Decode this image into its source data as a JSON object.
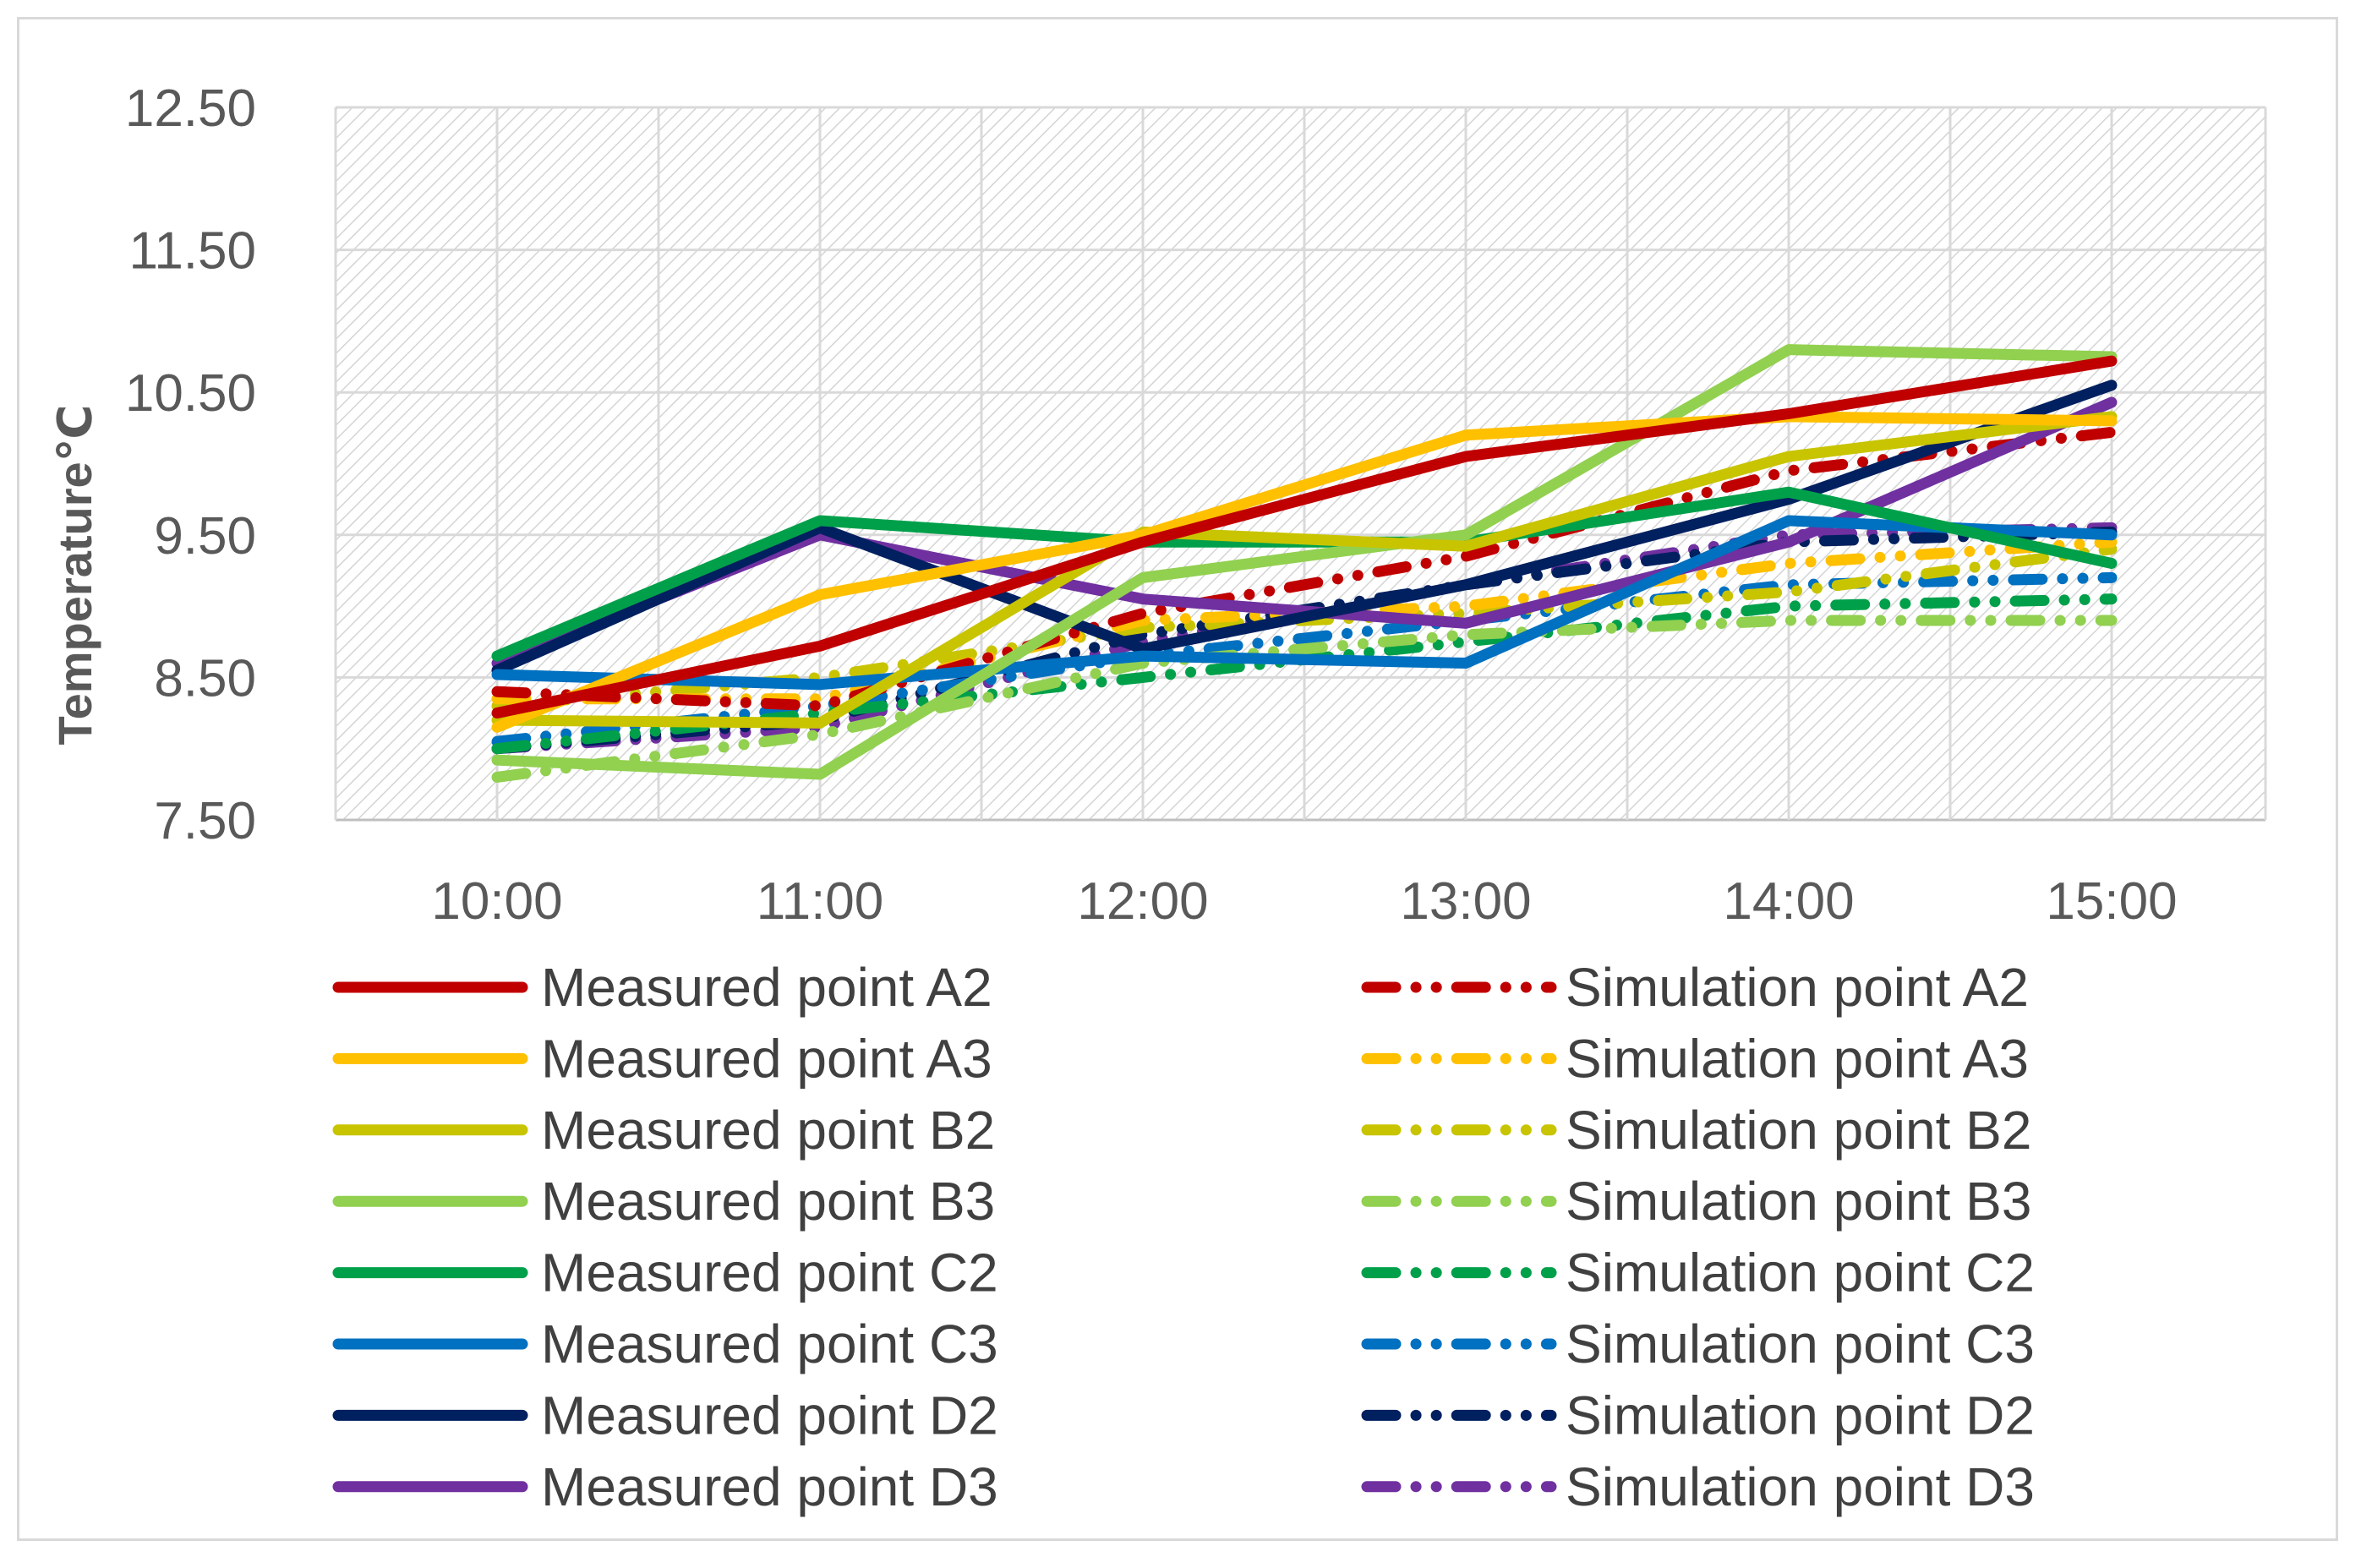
{
  "chart_data": {
    "type": "line",
    "title": "",
    "xlabel": "",
    "ylabel": "Temperature℃",
    "x": [
      "10:00",
      "11:00",
      "12:00",
      "13:00",
      "14:00",
      "15:00"
    ],
    "ylim": [
      7.5,
      12.5
    ],
    "yticks": [
      "7.50",
      "8.50",
      "9.50",
      "10.50",
      "11.50",
      "12.50"
    ],
    "grid": true,
    "plot_background": "hatched",
    "legend_position": "bottom",
    "series": [
      {
        "name": "Measured point A2",
        "style": "solid",
        "color": "#C00000",
        "values": [
          8.25,
          8.72,
          9.45,
          10.05,
          10.35,
          10.72
        ]
      },
      {
        "name": "Measured point A3",
        "style": "solid",
        "color": "#FFC000",
        "values": [
          8.15,
          9.08,
          9.5,
          10.2,
          10.33,
          10.3
        ]
      },
      {
        "name": "Measured point B2",
        "style": "solid",
        "color": "#C9C400",
        "values": [
          8.2,
          8.18,
          9.52,
          9.42,
          10.05,
          10.33
        ]
      },
      {
        "name": "Measured point B3",
        "style": "solid",
        "color": "#92D050",
        "values": [
          7.92,
          7.82,
          9.2,
          9.5,
          10.8,
          10.75
        ]
      },
      {
        "name": "Measured point C2",
        "style": "solid",
        "color": "#00A04A",
        "values": [
          8.65,
          9.6,
          9.45,
          9.45,
          9.8,
          9.3
        ]
      },
      {
        "name": "Measured point C3",
        "style": "solid",
        "color": "#0070C0",
        "values": [
          8.52,
          8.45,
          8.65,
          8.6,
          9.6,
          9.5
        ]
      },
      {
        "name": "Measured point D2",
        "style": "solid",
        "color": "#002060",
        "values": [
          8.55,
          9.55,
          8.7,
          9.15,
          9.75,
          10.55
        ]
      },
      {
        "name": "Measured point D3",
        "style": "solid",
        "color": "#7030A0",
        "values": [
          8.6,
          9.5,
          9.05,
          8.88,
          9.45,
          10.43
        ]
      },
      {
        "name": "Simulation point A2",
        "style": "dash-dot-dot",
        "color": "#C00000",
        "values": [
          8.4,
          8.3,
          8.95,
          9.35,
          9.95,
          10.22
        ]
      },
      {
        "name": "Simulation point A3",
        "style": "dash-dot-dot",
        "color": "#FFC000",
        "values": [
          8.35,
          8.35,
          8.9,
          9.0,
          9.3,
          9.45
        ]
      },
      {
        "name": "Simulation point B2",
        "style": "dash-dot-dot",
        "color": "#C9C400",
        "values": [
          8.3,
          8.5,
          8.85,
          8.95,
          9.1,
          9.4
        ]
      },
      {
        "name": "Simulation point B3",
        "style": "dash-dot-dot",
        "color": "#92D050",
        "values": [
          7.8,
          8.1,
          8.6,
          8.8,
          8.9,
          8.9
        ]
      },
      {
        "name": "Simulation point C2",
        "style": "dash-dot-dot",
        "color": "#00A04A",
        "values": [
          8.0,
          8.25,
          8.5,
          8.75,
          9.0,
          9.05
        ]
      },
      {
        "name": "Simulation point C3",
        "style": "dash-dot-dot",
        "color": "#0070C0",
        "values": [
          8.05,
          8.3,
          8.65,
          8.9,
          9.15,
          9.2
        ]
      },
      {
        "name": "Simulation point D2",
        "style": "dash-dot-dot",
        "color": "#002060",
        "values": [
          8.0,
          8.2,
          8.8,
          9.15,
          9.45,
          9.52
        ]
      },
      {
        "name": "Simulation point D3",
        "style": "dash-dot-dot",
        "color": "#7030A0",
        "values": [
          8.0,
          8.15,
          8.75,
          9.15,
          9.5,
          9.55
        ]
      }
    ]
  }
}
